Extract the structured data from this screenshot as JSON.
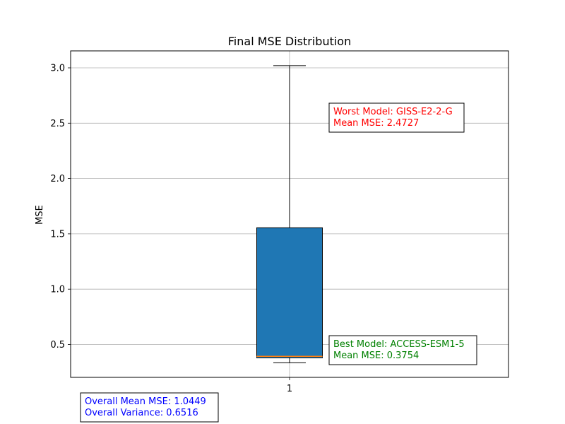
{
  "chart_data": {
    "type": "box",
    "title": "Final MSE Distribution",
    "xlabel": "",
    "ylabel": "MSE",
    "categories": [
      "1"
    ],
    "ylim": [
      0.2,
      3.15
    ],
    "yticks": [
      0.5,
      1.0,
      1.5,
      2.0,
      2.5,
      3.0
    ],
    "ytick_labels": [
      "0.5",
      "1.0",
      "1.5",
      "2.0",
      "2.5",
      "3.0"
    ],
    "grid": true,
    "box": {
      "whisker_low": 0.335,
      "q1": 0.38,
      "median": 0.393,
      "q3": 1.555,
      "whisker_high": 3.02,
      "fill_color": "#1f77b4",
      "median_color": "#ff7f0e"
    },
    "annotations": [
      {
        "id": "worst",
        "lines": [
          "Worst Model: GISS-E2-2-G",
          "Mean MSE: 2.4727"
        ],
        "color": "#ff0000"
      },
      {
        "id": "best",
        "lines": [
          "Best Model: ACCESS-ESM1-5",
          "Mean MSE: 0.3754"
        ],
        "color": "#008000"
      },
      {
        "id": "overall",
        "lines": [
          "Overall Mean MSE: 1.0449",
          "Overall Variance: 0.6516"
        ],
        "color": "#0000ff"
      }
    ]
  }
}
